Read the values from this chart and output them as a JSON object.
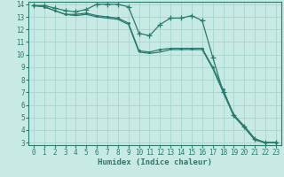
{
  "xlabel": "Humidex (Indice chaleur)",
  "background_color": "#c8eae4",
  "grid_color": "#a8d5cc",
  "line_color": "#2a7a6e",
  "xlim": [
    -0.5,
    23.5
  ],
  "ylim": [
    2.8,
    14.2
  ],
  "x_ticks": [
    0,
    1,
    2,
    3,
    4,
    5,
    6,
    7,
    8,
    9,
    10,
    11,
    12,
    13,
    14,
    15,
    16,
    17,
    18,
    19,
    20,
    21,
    22,
    23
  ],
  "y_ticks": [
    3,
    4,
    5,
    6,
    7,
    8,
    9,
    10,
    11,
    12,
    13,
    14
  ],
  "line1_x": [
    0,
    1,
    2,
    3,
    4,
    5,
    6,
    7,
    8,
    9,
    10,
    11,
    12,
    13,
    14,
    15,
    16,
    17,
    18,
    19,
    20,
    21,
    22,
    23
  ],
  "line1_y": [
    13.9,
    13.9,
    13.7,
    13.5,
    13.4,
    13.6,
    14.0,
    14.0,
    14.0,
    13.8,
    11.7,
    11.5,
    12.4,
    12.9,
    12.9,
    13.1,
    12.7,
    9.8,
    7.0,
    5.2,
    4.3,
    3.3,
    3.0,
    3.0
  ],
  "line2_x": [
    0,
    1,
    2,
    3,
    4,
    5,
    6,
    7,
    8,
    9,
    10,
    11,
    12,
    13,
    14,
    15,
    16,
    17,
    18,
    19,
    20,
    21,
    22,
    23
  ],
  "line2_y": [
    13.9,
    13.8,
    13.5,
    13.2,
    13.2,
    13.3,
    13.1,
    13.0,
    12.9,
    12.5,
    10.3,
    10.2,
    10.4,
    10.5,
    10.5,
    10.5,
    10.5,
    9.0,
    7.2,
    5.2,
    4.3,
    3.3,
    3.0,
    3.0
  ],
  "line3_x": [
    0,
    1,
    2,
    3,
    4,
    5,
    6,
    7,
    8,
    9,
    10,
    11,
    12,
    13,
    14,
    15,
    16,
    17,
    18,
    19,
    20,
    21,
    22,
    23
  ],
  "line3_y": [
    13.9,
    13.8,
    13.5,
    13.2,
    13.1,
    13.2,
    13.0,
    12.9,
    12.8,
    12.4,
    10.2,
    10.1,
    10.2,
    10.4,
    10.4,
    10.4,
    10.4,
    8.9,
    7.0,
    5.1,
    4.2,
    3.2,
    3.0,
    3.0
  ]
}
